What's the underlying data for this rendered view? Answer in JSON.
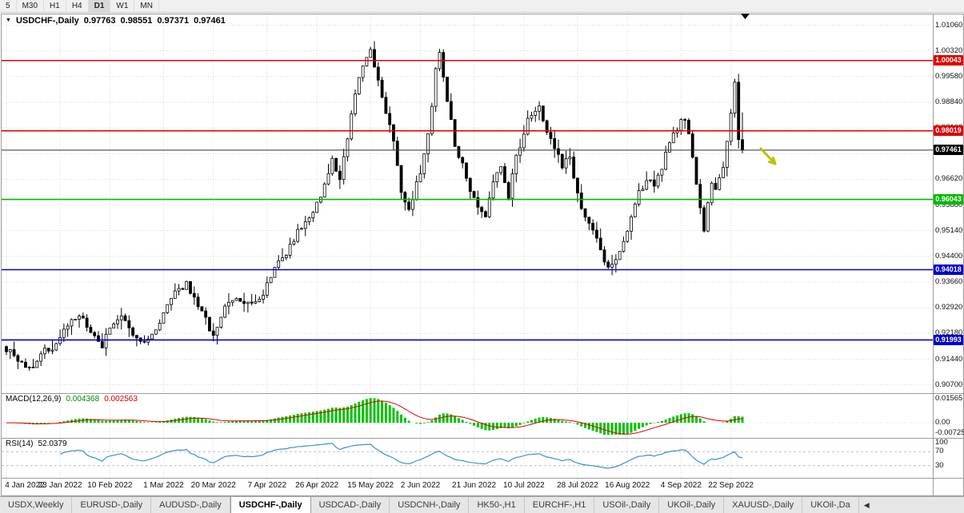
{
  "toolbar": {
    "timeframes": [
      "5",
      "M30",
      "H1",
      "H4",
      "D1",
      "W1",
      "MN"
    ],
    "active": "D1"
  },
  "chart": {
    "header": {
      "dropdown_icon": "▼",
      "symbol": "USDCHF-,Daily",
      "o": "0.97763",
      "h": "0.98551",
      "l": "0.97371",
      "c": "0.97461"
    },
    "price_axis": [
      "1.01060",
      "1.00320",
      "0.99580",
      "0.98840",
      "0.98100",
      "0.97360",
      "0.96620",
      "0.95880",
      "0.95140",
      "0.94400",
      "0.93660",
      "0.92920",
      "0.92180",
      "0.91440",
      "0.90700"
    ],
    "hlines": [
      {
        "price": 1.00043,
        "label": "1.00043",
        "color": "#dd0000"
      },
      {
        "price": 0.98019,
        "label": "0.98019",
        "color": "#dd0000"
      },
      {
        "price": 0.96043,
        "label": "0.96043",
        "color": "#00b900"
      },
      {
        "price": 0.94018,
        "label": "0.94018",
        "color": "#0000cc"
      },
      {
        "price": 0.91993,
        "label": "0.91993",
        "color": "#0000cc"
      }
    ],
    "current_price": {
      "value": 0.97461,
      "label": "0.97461",
      "color": "#000000"
    }
  },
  "macd_panel": {
    "name": "MACD(12,26,9)",
    "value_main": "0.004368",
    "value_signal": "0.002563",
    "axis": [
      "0.01565",
      "0.00",
      "-0.00725"
    ],
    "hist_color": "#00c400",
    "signal_color": "#dd0000"
  },
  "rsi_panel": {
    "name": "RSI(14)",
    "value": "52.0379",
    "axis": [
      "100",
      "70",
      "30"
    ],
    "line_color": "#3b8fd4"
  },
  "time_axis": [
    "4 Jan 2022",
    "23 Jan 2022",
    "10 Feb 2022",
    "1 Mar 2022",
    "20 Mar 2022",
    "7 Apr 2022",
    "26 Apr 2022",
    "15 May 2022",
    "2 Jun 2022",
    "21 Jun 2022",
    "10 Jul 2022",
    "28 Jul 2022",
    "16 Aug 2022",
    "4 Sep 2022",
    "22 Sep 2022"
  ],
  "tabs": {
    "items": [
      "USDX,Weekly",
      "EURUSD-,Daily",
      "AUDUSD-,Daily",
      "USDCHF-,Daily",
      "USDCAD-,Daily",
      "USDCNH-,Daily",
      "HK50-,H1",
      "EURCHF-,H1",
      "USOil-,Daily",
      "UKOil-,Daily",
      "XAUUSD-,Daily",
      "UKOil-,Da"
    ],
    "active_index": 3,
    "scroll_left": "◀"
  },
  "annotation": {
    "type": "arrow-down-right",
    "color": "#b8c400"
  },
  "marker": {
    "type": "triangle-down",
    "color": "#000000"
  },
  "chart_data": {
    "type": "candlestick",
    "symbol": "USDCHF-",
    "timeframe": "Daily",
    "visible_range": [
      "4 Jan 2022",
      "30 Sep 2022"
    ],
    "n": 193,
    "seed": 987654321,
    "wiggle": 0.0011,
    "wick": 0.0028,
    "price_scale": {
      "min": 0.906,
      "max": 1.0128
    },
    "last_candle": {
      "o": 0.97763,
      "h": 0.98551,
      "l": 0.97371,
      "c": 0.97461
    },
    "macd": {
      "fast": 12,
      "slow": 26,
      "signal": 9,
      "scale_max": 0.01565,
      "scale_min": -0.00725
    },
    "rsi": {
      "period": 14,
      "levels": [
        70,
        30
      ]
    },
    "waypoints": [
      [
        0,
        0.9175
      ],
      [
        3,
        0.914
      ],
      [
        6,
        0.9115
      ],
      [
        9,
        0.916
      ],
      [
        13,
        0.9185
      ],
      [
        16,
        0.9245
      ],
      [
        19,
        0.9272
      ],
      [
        22,
        0.9215
      ],
      [
        25,
        0.9182
      ],
      [
        27,
        0.924
      ],
      [
        30,
        0.9262
      ],
      [
        33,
        0.9212
      ],
      [
        36,
        0.9185
      ],
      [
        40,
        0.9255
      ],
      [
        44,
        0.933
      ],
      [
        47,
        0.9362
      ],
      [
        50,
        0.9295
      ],
      [
        54,
        0.9215
      ],
      [
        57,
        0.929
      ],
      [
        60,
        0.9318
      ],
      [
        63,
        0.9298
      ],
      [
        67,
        0.933
      ],
      [
        70,
        0.9415
      ],
      [
        73,
        0.9448
      ],
      [
        76,
        0.9515
      ],
      [
        80,
        0.956
      ],
      [
        83,
        0.9648
      ],
      [
        85,
        0.9715
      ],
      [
        87,
        0.9672
      ],
      [
        89,
        0.978
      ],
      [
        91,
        0.9905
      ],
      [
        93,
        0.999
      ],
      [
        95,
        1.0035
      ],
      [
        97,
        0.9945
      ],
      [
        99,
        0.986
      ],
      [
        101,
        0.978
      ],
      [
        103,
        0.9625
      ],
      [
        105,
        0.9578
      ],
      [
        107,
        0.9645
      ],
      [
        109,
        0.9725
      ],
      [
        111,
        0.988
      ],
      [
        112,
        0.999
      ],
      [
        113,
        1.002
      ],
      [
        115,
        0.989
      ],
      [
        117,
        0.976
      ],
      [
        119,
        0.97
      ],
      [
        121,
        0.9638
      ],
      [
        123,
        0.959
      ],
      [
        125,
        0.9555
      ],
      [
        127,
        0.965
      ],
      [
        129,
        0.97
      ],
      [
        131,
        0.9618
      ],
      [
        133,
        0.9722
      ],
      [
        135,
        0.98
      ],
      [
        137,
        0.9855
      ],
      [
        139,
        0.988
      ],
      [
        141,
        0.9802
      ],
      [
        143,
        0.9758
      ],
      [
        145,
        0.97
      ],
      [
        147,
        0.9728
      ],
      [
        149,
        0.9618
      ],
      [
        151,
        0.9558
      ],
      [
        153,
        0.9518
      ],
      [
        155,
        0.945
      ],
      [
        157,
        0.9405
      ],
      [
        159,
        0.9432
      ],
      [
        161,
        0.949
      ],
      [
        163,
        0.9552
      ],
      [
        165,
        0.9622
      ],
      [
        167,
        0.9662
      ],
      [
        169,
        0.964
      ],
      [
        171,
        0.97
      ],
      [
        173,
        0.9762
      ],
      [
        175,
        0.9808
      ],
      [
        177,
        0.9842
      ],
      [
        179,
        0.9735
      ],
      [
        180,
        0.9648
      ],
      [
        181,
        0.9572
      ],
      [
        182,
        0.9512
      ],
      [
        183,
        0.9588
      ],
      [
        184,
        0.9652
      ],
      [
        185,
        0.9632
      ],
      [
        186,
        0.9662
      ],
      [
        187,
        0.97
      ],
      [
        188,
        0.9772
      ],
      [
        189,
        0.9852
      ],
      [
        190,
        0.9942
      ],
      [
        191,
        0.97763
      ],
      [
        192,
        0.97461
      ]
    ]
  }
}
